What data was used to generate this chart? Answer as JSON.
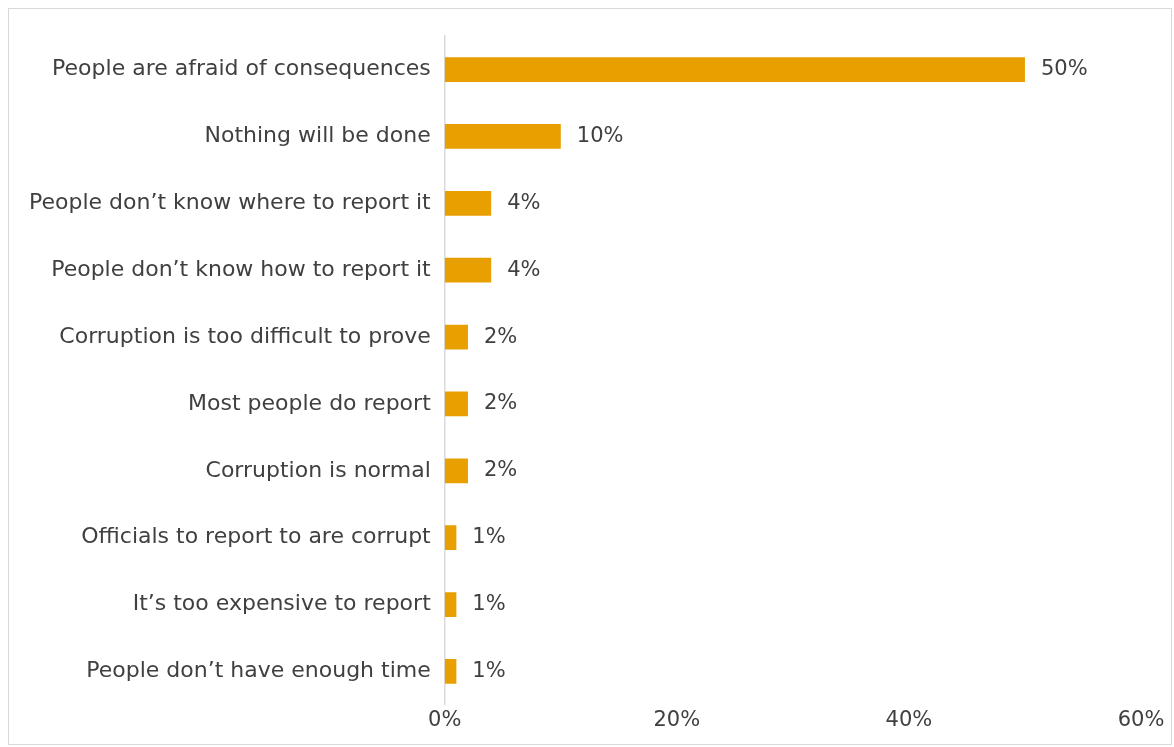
{
  "chart_data": {
    "type": "bar",
    "orientation": "horizontal",
    "categories": [
      "People are afraid of consequences",
      "Nothing will be done",
      "People don’t know where to report it",
      "People don’t know how to report it",
      "Corruption is too difficult to prove",
      "Most people do report",
      "Corruption is normal",
      "Officials to report to are corrupt",
      "It’s too expensive to report",
      "People don’t have enough time"
    ],
    "values": [
      50,
      10,
      4,
      4,
      2,
      2,
      2,
      1,
      1,
      1
    ],
    "value_labels": [
      "50%",
      "10%",
      "4%",
      "4%",
      "2%",
      "2%",
      "2%",
      "1%",
      "1%",
      "1%"
    ],
    "color": "#e8a000",
    "xlim": [
      0,
      60
    ],
    "xticks": [
      {
        "value": 0,
        "label": "0%"
      },
      {
        "value": 20,
        "label": "20%"
      },
      {
        "value": 40,
        "label": "40%"
      },
      {
        "value": 60,
        "label": "60%"
      }
    ],
    "grid": false,
    "legend": false
  }
}
